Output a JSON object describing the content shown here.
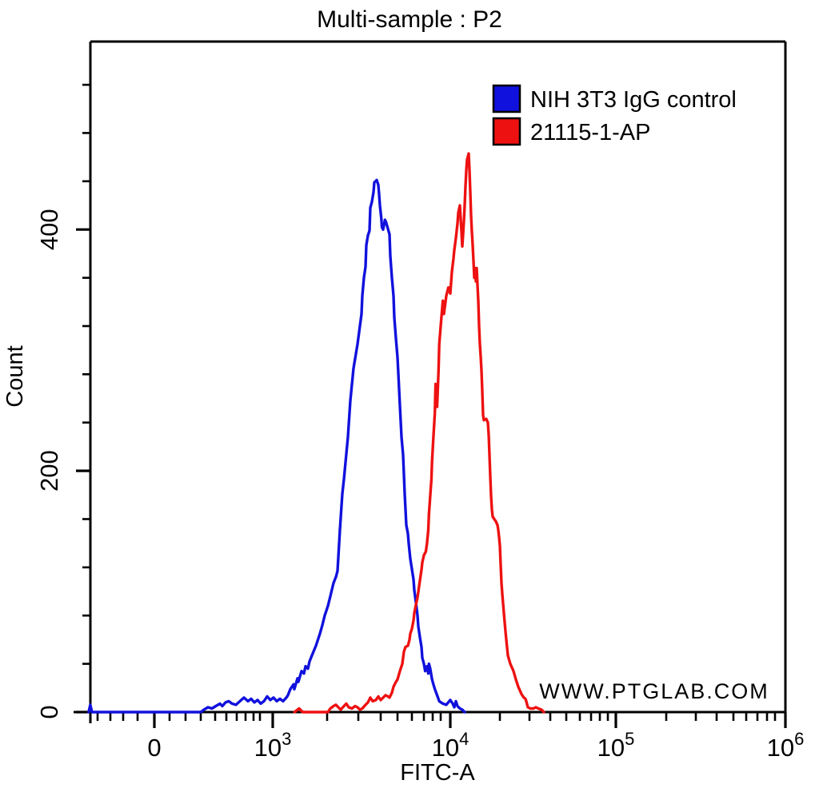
{
  "watermark": "WWW.PTGLAB.COM",
  "colors": {
    "background": "#ffffff",
    "axis": "#000000",
    "watermark": "#d4d4d4",
    "blue_series": "#1111dd",
    "red_series": "#ee1111"
  },
  "chart_data": {
    "type": "line",
    "subtype": "flow-cytometry-histogram-overlay",
    "title": "Multi-sample : P2",
    "xlabel": "FITC-A",
    "ylabel": "Count",
    "x_scale": "biexponential-log",
    "xlim_label": "-500 to 1000000",
    "ylim": [
      0,
      555
    ],
    "grid": false,
    "legend_position": "top-right-inside",
    "y_major_ticks": [
      {
        "value": 0,
        "label": "0"
      },
      {
        "value": 200,
        "label": "200"
      },
      {
        "value": 400,
        "label": "400"
      }
    ],
    "y_minor_ticks": [
      40,
      80,
      120,
      160,
      240,
      280,
      320,
      360,
      440,
      480,
      520
    ],
    "x_major_ticks": [
      {
        "value": 0,
        "label": "0"
      },
      {
        "value": 1000,
        "base": "10",
        "exp": "3"
      },
      {
        "value": 10000,
        "base": "10",
        "exp": "4"
      },
      {
        "value": 100000,
        "base": "10",
        "exp": "5"
      },
      {
        "value": 1000000,
        "base": "10",
        "exp": "6"
      }
    ],
    "x_minor_ticks": [
      -400,
      -300,
      -200,
      -100,
      100,
      200,
      300,
      400,
      500,
      600,
      700,
      800,
      900,
      2000,
      3000,
      4000,
      5000,
      6000,
      7000,
      8000,
      9000,
      20000,
      30000,
      40000,
      50000,
      60000,
      70000,
      80000,
      90000,
      200000,
      300000,
      400000,
      500000,
      600000,
      700000,
      800000,
      900000
    ],
    "series": [
      {
        "name": "NIH 3T3 IgG control",
        "color": "#1111dd",
        "peak": {
          "x": 3800,
          "count": 441
        },
        "points": [
          [
            -480,
            0
          ],
          [
            -465,
            6
          ],
          [
            -450,
            0
          ],
          [
            -300,
            0
          ],
          [
            300,
            0
          ],
          [
            322,
            2
          ],
          [
            350,
            4
          ],
          [
            378,
            3
          ],
          [
            406,
            5
          ],
          [
            443,
            7
          ],
          [
            464,
            5
          ],
          [
            493,
            8
          ],
          [
            523,
            9
          ],
          [
            554,
            7
          ],
          [
            592,
            6
          ],
          [
            636,
            9
          ],
          [
            682,
            12
          ],
          [
            730,
            9
          ],
          [
            770,
            11
          ],
          [
            813,
            8
          ],
          [
            863,
            10
          ],
          [
            906,
            7
          ],
          [
            931,
            9
          ],
          [
            956,
            13
          ],
          [
            981,
            10
          ],
          [
            1015,
            12
          ],
          [
            1074,
            9
          ],
          [
            1132,
            11
          ],
          [
            1191,
            9
          ],
          [
            1250,
            12
          ],
          [
            1279,
            14
          ],
          [
            1324,
            19
          ],
          [
            1382,
            23
          ],
          [
            1397,
            19
          ],
          [
            1456,
            28
          ],
          [
            1471,
            25
          ],
          [
            1529,
            34
          ],
          [
            1574,
            32
          ],
          [
            1603,
            38
          ],
          [
            1647,
            36
          ],
          [
            1676,
            42
          ],
          [
            1721,
            47
          ],
          [
            1794,
            55
          ],
          [
            1868,
            65
          ],
          [
            1912,
            72
          ],
          [
            1956,
            80
          ],
          [
            2026,
            88
          ],
          [
            2103,
            96
          ],
          [
            2205,
            107
          ],
          [
            2282,
            112
          ],
          [
            2333,
            117
          ],
          [
            2410,
            151
          ],
          [
            2487,
            181
          ],
          [
            2538,
            193
          ],
          [
            2667,
            228
          ],
          [
            2744,
            258
          ],
          [
            2846,
            285
          ],
          [
            2974,
            305
          ],
          [
            3071,
            320
          ],
          [
            3143,
            330
          ],
          [
            3179,
            345
          ],
          [
            3250,
            360
          ],
          [
            3321,
            369
          ],
          [
            3357,
            387
          ],
          [
            3429,
            395
          ],
          [
            3500,
            399
          ],
          [
            3536,
            418
          ],
          [
            3607,
            423
          ],
          [
            3679,
            431
          ],
          [
            3714,
            439
          ],
          [
            3821,
            441
          ],
          [
            3893,
            437
          ],
          [
            3929,
            429
          ],
          [
            3964,
            420
          ],
          [
            4036,
            409
          ],
          [
            4071,
            402
          ],
          [
            4143,
            400
          ],
          [
            4214,
            405
          ],
          [
            4250,
            408
          ],
          [
            4321,
            406
          ],
          [
            4524,
            396
          ],
          [
            4571,
            378
          ],
          [
            4667,
            360
          ],
          [
            4762,
            345
          ],
          [
            4810,
            327
          ],
          [
            4905,
            310
          ],
          [
            5000,
            294
          ],
          [
            5056,
            281
          ],
          [
            5167,
            254
          ],
          [
            5278,
            228
          ],
          [
            5389,
            213
          ],
          [
            5444,
            197
          ],
          [
            5500,
            181
          ],
          [
            5556,
            168
          ],
          [
            5611,
            155
          ],
          [
            5722,
            148
          ],
          [
            5778,
            140
          ],
          [
            5889,
            127
          ],
          [
            6133,
            110
          ],
          [
            6200,
            101
          ],
          [
            6333,
            91
          ],
          [
            6467,
            80
          ],
          [
            6533,
            71
          ],
          [
            6667,
            62
          ],
          [
            6800,
            54
          ],
          [
            6867,
            45
          ],
          [
            7000,
            40
          ],
          [
            7143,
            34
          ],
          [
            7357,
            38
          ],
          [
            7500,
            32
          ],
          [
            7571,
            40
          ],
          [
            7714,
            36
          ],
          [
            7929,
            27
          ],
          [
            8091,
            23
          ],
          [
            8273,
            19
          ],
          [
            8545,
            14
          ],
          [
            8818,
            9
          ],
          [
            9222,
            7
          ],
          [
            9583,
            6
          ],
          [
            10000,
            10
          ],
          [
            10484,
            7
          ],
          [
            10806,
            4
          ],
          [
            11129,
            9
          ],
          [
            11452,
            5
          ],
          [
            11935,
            3
          ],
          [
            12419,
            2
          ],
          [
            12903,
            0
          ]
        ]
      },
      {
        "name": "21115-1-AP",
        "color": "#ee1111",
        "peak": {
          "x": 13700,
          "count": 463
        },
        "points": [
          [
            1400,
            0
          ],
          [
            1485,
            3
          ],
          [
            1550,
            0
          ],
          [
            2026,
            0
          ],
          [
            2103,
            3
          ],
          [
            2205,
            5
          ],
          [
            2282,
            6
          ],
          [
            2359,
            4
          ],
          [
            2436,
            2
          ],
          [
            2538,
            5
          ],
          [
            2615,
            7
          ],
          [
            2692,
            4
          ],
          [
            2795,
            3
          ],
          [
            2897,
            5
          ],
          [
            2974,
            4
          ],
          [
            3071,
            2
          ],
          [
            3179,
            3
          ],
          [
            3321,
            6
          ],
          [
            3429,
            8
          ],
          [
            3536,
            12
          ],
          [
            3643,
            9
          ],
          [
            3786,
            10
          ],
          [
            3893,
            13
          ],
          [
            4000,
            10
          ],
          [
            4143,
            12
          ],
          [
            4286,
            14
          ],
          [
            4429,
            13
          ],
          [
            4524,
            12
          ],
          [
            4667,
            16
          ],
          [
            4762,
            21
          ],
          [
            4905,
            25
          ],
          [
            5000,
            27
          ],
          [
            5167,
            34
          ],
          [
            5333,
            40
          ],
          [
            5444,
            50
          ],
          [
            5556,
            54
          ],
          [
            5722,
            55
          ],
          [
            5833,
            60
          ],
          [
            5889,
            65
          ],
          [
            6000,
            69
          ],
          [
            6133,
            76
          ],
          [
            6200,
            82
          ],
          [
            6333,
            89
          ],
          [
            6467,
            95
          ],
          [
            6667,
            109
          ],
          [
            6800,
            118
          ],
          [
            6867,
            124
          ],
          [
            7000,
            130
          ],
          [
            7214,
            133
          ],
          [
            7357,
            140
          ],
          [
            7500,
            151
          ],
          [
            7571,
            164
          ],
          [
            7714,
            179
          ],
          [
            7857,
            193
          ],
          [
            7929,
            208
          ],
          [
            8091,
            228
          ],
          [
            8273,
            248
          ],
          [
            8364,
            272
          ],
          [
            8545,
            253
          ],
          [
            8727,
            283
          ],
          [
            8818,
            305
          ],
          [
            9000,
            320
          ],
          [
            9222,
            341
          ],
          [
            9333,
            330
          ],
          [
            9583,
            345
          ],
          [
            9800,
            352
          ],
          [
            10000,
            347
          ],
          [
            10323,
            365
          ],
          [
            10645,
            376
          ],
          [
            10806,
            383
          ],
          [
            11129,
            393
          ],
          [
            11452,
            405
          ],
          [
            11613,
            414
          ],
          [
            11935,
            420
          ],
          [
            12097,
            409
          ],
          [
            12258,
            398
          ],
          [
            12419,
            386
          ],
          [
            12581,
            396
          ],
          [
            12742,
            407
          ],
          [
            12903,
            420
          ],
          [
            13065,
            436
          ],
          [
            13226,
            449
          ],
          [
            13387,
            458
          ],
          [
            13710,
            463
          ],
          [
            13871,
            449
          ],
          [
            14032,
            431
          ],
          [
            14194,
            411
          ],
          [
            14355,
            398
          ],
          [
            14516,
            387
          ],
          [
            14677,
            374
          ],
          [
            14839,
            360
          ],
          [
            15000,
            368
          ],
          [
            15161,
            357
          ],
          [
            15323,
            368
          ],
          [
            15484,
            354
          ],
          [
            15645,
            341
          ],
          [
            15806,
            320
          ],
          [
            15968,
            305
          ],
          [
            16129,
            295
          ],
          [
            16290,
            283
          ],
          [
            16452,
            266
          ],
          [
            16613,
            246
          ],
          [
            16774,
            242
          ],
          [
            17258,
            243
          ],
          [
            17581,
            240
          ],
          [
            17742,
            230
          ],
          [
            17903,
            213
          ],
          [
            18065,
            195
          ],
          [
            18226,
            179
          ],
          [
            18387,
            168
          ],
          [
            18548,
            162
          ],
          [
            18871,
            160
          ],
          [
            19194,
            158
          ],
          [
            19516,
            155
          ],
          [
            19677,
            151
          ],
          [
            19839,
            145
          ],
          [
            20000,
            138
          ],
          [
            20270,
            122
          ],
          [
            20541,
            107
          ],
          [
            20811,
            98
          ],
          [
            21351,
            82
          ],
          [
            21892,
            67
          ],
          [
            22162,
            60
          ],
          [
            22703,
            47
          ],
          [
            23514,
            40
          ],
          [
            24595,
            34
          ],
          [
            25405,
            27
          ],
          [
            26216,
            21
          ],
          [
            27297,
            15
          ],
          [
            28108,
            12
          ],
          [
            28649,
            11
          ],
          [
            28919,
            9
          ],
          [
            29459,
            4
          ],
          [
            30385,
            3
          ],
          [
            31923,
            3
          ],
          [
            33077,
            4
          ],
          [
            34231,
            3
          ],
          [
            35769,
            2
          ],
          [
            36923,
            0
          ]
        ]
      }
    ]
  }
}
